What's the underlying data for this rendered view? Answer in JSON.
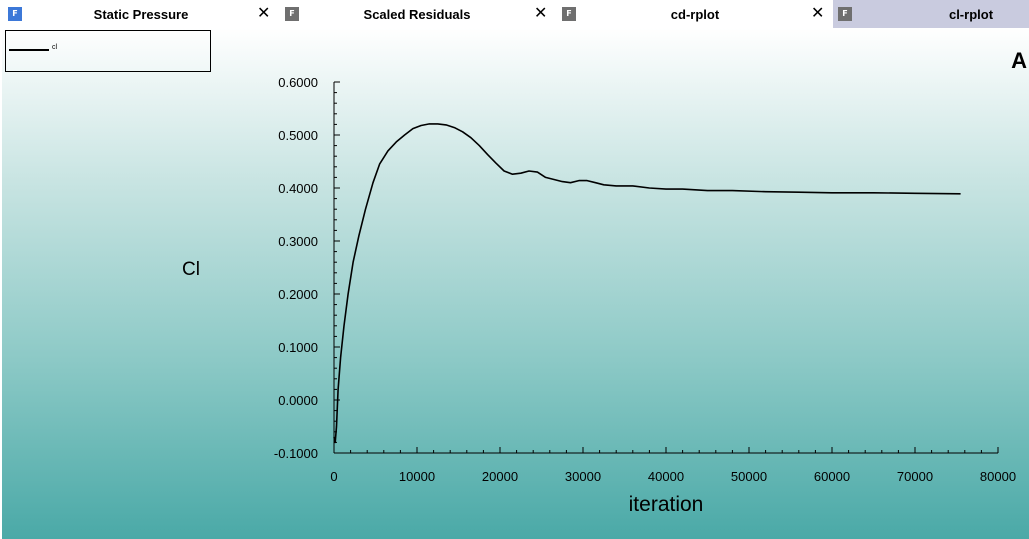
{
  "tabs": [
    {
      "label": "Static Pressure",
      "icon": "fluent-icon",
      "close": "✕",
      "active": false
    },
    {
      "label": "Scaled Residuals",
      "icon": "fluent-icon",
      "close": "✕",
      "active": false
    },
    {
      "label": "cd-rplot",
      "icon": "fluent-icon",
      "close": "✕",
      "active": false
    },
    {
      "label": "cl-rplot",
      "icon": "fluent-icon",
      "active": true
    }
  ],
  "icon_letter": "F",
  "corner_letter": "A",
  "colors": {
    "active_tab": "#c9cbdf",
    "gradient_top": "#ffffff",
    "gradient_bottom": "#4aa9a7",
    "line": "#000000"
  },
  "chart_data": {
    "type": "line",
    "xlabel": "iteration",
    "ylabel": "Cl",
    "xlim": [
      0,
      80000
    ],
    "ylim": [
      -0.1,
      0.6
    ],
    "x_ticks": [
      0,
      10000,
      20000,
      30000,
      40000,
      50000,
      60000,
      70000,
      80000
    ],
    "x_tick_labels": [
      "0",
      "10000",
      "20000",
      "30000",
      "40000",
      "50000",
      "60000",
      "70000",
      "80000"
    ],
    "y_ticks": [
      -0.1,
      0.0,
      0.1,
      0.2,
      0.3,
      0.4,
      0.5,
      0.6
    ],
    "y_tick_labels": [
      "-0.1000",
      "0.0000",
      "0.1000",
      "0.2000",
      "0.3000",
      "0.4000",
      "0.5000",
      "0.6000"
    ],
    "legend": {
      "placement": "top-left"
    },
    "series": [
      {
        "name": "cl",
        "x": [
          0,
          150,
          300,
          500,
          800,
          1200,
          1700,
          2300,
          3000,
          3800,
          4700,
          5500,
          6500,
          7500,
          8500,
          9500,
          10500,
          11500,
          12500,
          13500,
          14500,
          15500,
          16500,
          17500,
          18500,
          19500,
          20500,
          21500,
          22500,
          23500,
          24500,
          25500,
          26500,
          27500,
          28500,
          29500,
          30500,
          31500,
          32500,
          34000,
          36000,
          38000,
          40000,
          42000,
          45000,
          48000,
          52000,
          56000,
          60000,
          65000,
          70000,
          75500
        ],
        "values": [
          -0.07,
          -0.08,
          -0.05,
          0.02,
          0.08,
          0.14,
          0.2,
          0.26,
          0.31,
          0.36,
          0.41,
          0.445,
          0.47,
          0.487,
          0.5,
          0.512,
          0.518,
          0.521,
          0.521,
          0.519,
          0.514,
          0.506,
          0.495,
          0.48,
          0.463,
          0.447,
          0.432,
          0.426,
          0.428,
          0.432,
          0.43,
          0.42,
          0.416,
          0.412,
          0.41,
          0.414,
          0.414,
          0.41,
          0.406,
          0.404,
          0.404,
          0.4,
          0.398,
          0.398,
          0.395,
          0.395,
          0.393,
          0.392,
          0.391,
          0.391,
          0.39,
          0.389
        ]
      }
    ]
  }
}
